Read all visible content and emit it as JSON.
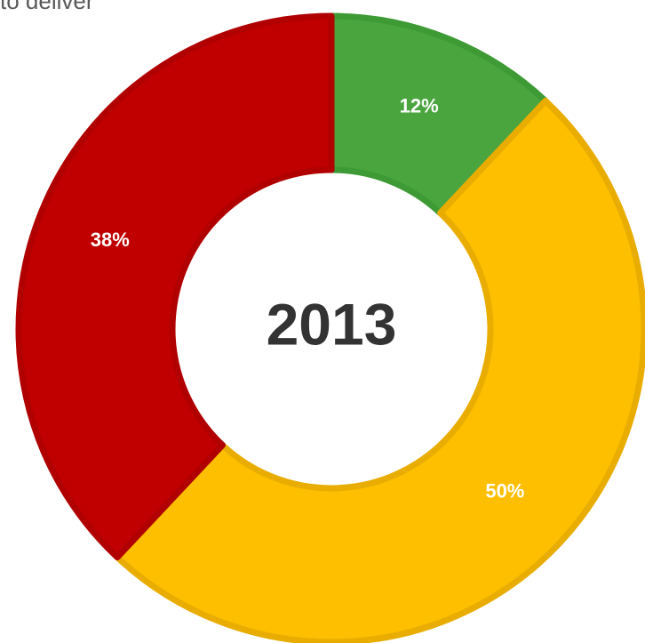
{
  "caption": "to deliver",
  "chart_data": {
    "type": "pie",
    "variant": "donut",
    "center_label": "2013",
    "start": "12 o'clock",
    "direction": "clockwise",
    "slices": [
      {
        "value": 12,
        "label": "12%",
        "color": "#4aa53f",
        "stroke": "#3d9a34"
      },
      {
        "value": 50,
        "label": "50%",
        "color": "#fdbf00",
        "stroke": "#e8ad00"
      },
      {
        "value": 38,
        "label": "38%",
        "color": "#c00000",
        "stroke": "#b00000"
      }
    ]
  }
}
